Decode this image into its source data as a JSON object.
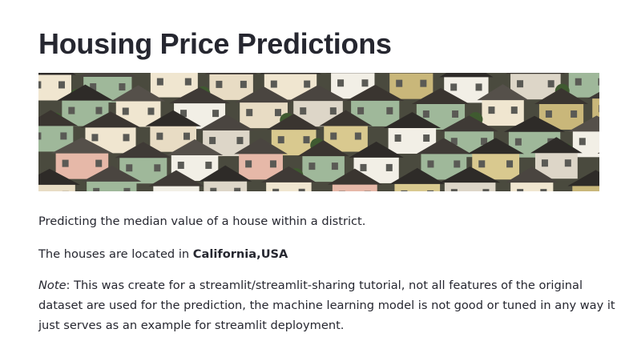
{
  "page": {
    "title": "Housing Price Predictions",
    "hero_image": "aerial-suburban-houses-photo",
    "intro": "Predicting the median value of a house within a district.",
    "location_prefix": "The houses are located in ",
    "location": "California,USA",
    "note_label": "Note",
    "note_text": ": This was create for a streamlit/streamlit-sharing tutorial, not all features of the original dataset are used for the prediction, the machine learning model is not good or tuned in any way it just serves as an example for streamlit deployment."
  },
  "colors": {
    "text": "#262730",
    "background": "#ffffff"
  }
}
